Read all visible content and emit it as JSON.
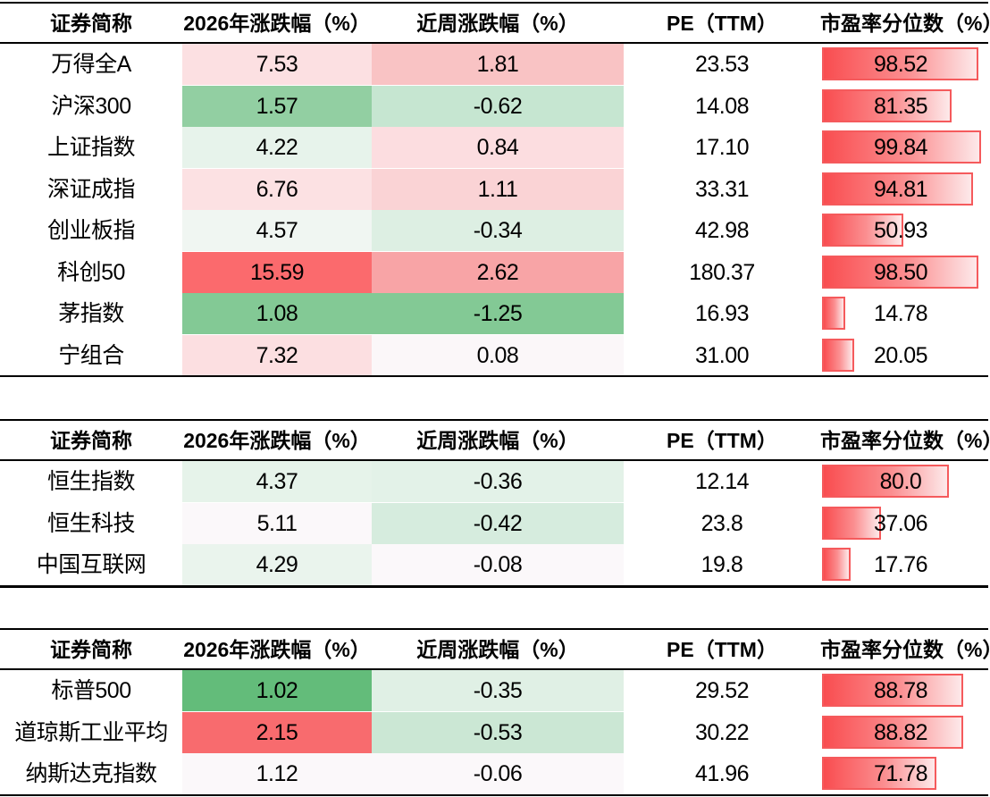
{
  "columns": [
    "证券简称",
    "2026年涨跌幅（%）",
    "近周涨跌幅（%）",
    "PE（TTM）",
    "市盈率分位数（%）"
  ],
  "sections": [
    {
      "rows": [
        {
          "name": "万得全A",
          "ytd": "7.53",
          "week": "1.81",
          "pe": "23.53",
          "pct": "98.52",
          "pct_value": 98.52,
          "ytd_color": "#fce0e2",
          "week_color": "#f9c3c4"
        },
        {
          "name": "沪深300",
          "ytd": "1.57",
          "week": "-0.62",
          "pe": "14.08",
          "pct": "81.35",
          "pct_value": 81.35,
          "ytd_color": "#92cfa2",
          "week_color": "#c6e6d1"
        },
        {
          "name": "上证指数",
          "ytd": "4.22",
          "week": "0.84",
          "pe": "17.10",
          "pct": "99.84",
          "pct_value": 99.84,
          "ytd_color": "#e7f3eb",
          "week_color": "#fcdde0"
        },
        {
          "name": "深证成指",
          "ytd": "6.76",
          "week": "1.11",
          "pe": "33.31",
          "pct": "94.81",
          "pct_value": 94.81,
          "ytd_color": "#fce1e3",
          "week_color": "#fad3d5"
        },
        {
          "name": "创业板指",
          "ytd": "4.57",
          "week": "-0.34",
          "pe": "42.98",
          "pct": "50.93",
          "pct_value": 50.93,
          "ytd_color": "#f0f6f2",
          "week_color": "#ddefe3"
        },
        {
          "name": "科创50",
          "ytd": "15.59",
          "week": "2.62",
          "pe": "180.37",
          "pct": "98.50",
          "pct_value": 98.5,
          "ytd_color": "#fb6a6d",
          "week_color": "#f8a4a6"
        },
        {
          "name": "茅指数",
          "ytd": "1.08",
          "week": "-1.25",
          "pe": "16.93",
          "pct": "14.78",
          "pct_value": 14.78,
          "ytd_color": "#83c995",
          "week_color": "#83c995"
        },
        {
          "name": "宁组合",
          "ytd": "7.32",
          "week": "0.08",
          "pe": "31.00",
          "pct": "20.05",
          "pct_value": 20.05,
          "ytd_color": "#fcdfe1",
          "week_color": "#fbf7f9"
        }
      ]
    },
    {
      "rows": [
        {
          "name": "恒生指数",
          "ytd": "4.37",
          "week": "-0.36",
          "pe": "12.14",
          "pct": "80.0",
          "pct_value": 80.0,
          "ytd_color": "#e6f3ea",
          "week_color": "#e3f2e8"
        },
        {
          "name": "恒生科技",
          "ytd": "5.11",
          "week": "-0.42",
          "pe": "23.8",
          "pct": "37.06",
          "pct_value": 37.06,
          "ytd_color": "#fbf8fa",
          "week_color": "#d6ecde"
        },
        {
          "name": "中国互联网",
          "ytd": "4.29",
          "week": "-0.08",
          "pe": "19.8",
          "pct": "17.76",
          "pct_value": 17.76,
          "ytd_color": "#eaf4ed",
          "week_color": "#fbf8fa"
        }
      ]
    },
    {
      "rows": [
        {
          "name": "标普500",
          "ytd": "1.02",
          "week": "-0.35",
          "pe": "29.52",
          "pct": "88.78",
          "pct_value": 88.78,
          "ytd_color": "#63bc7a",
          "week_color": "#e0f0e5"
        },
        {
          "name": "道琼斯工业平均",
          "ytd": "2.15",
          "week": "-0.53",
          "pe": "30.22",
          "pct": "88.82",
          "pct_value": 88.82,
          "ytd_color": "#f86b6e",
          "week_color": "#cbe7d4"
        },
        {
          "name": "纳斯达克指数",
          "ytd": "1.12",
          "week": "-0.06",
          "pe": "41.96",
          "pct": "71.78",
          "pct_value": 71.78,
          "ytd_color": "#fbf8fa",
          "week_color": "#fbf8fa"
        }
      ]
    }
  ]
}
